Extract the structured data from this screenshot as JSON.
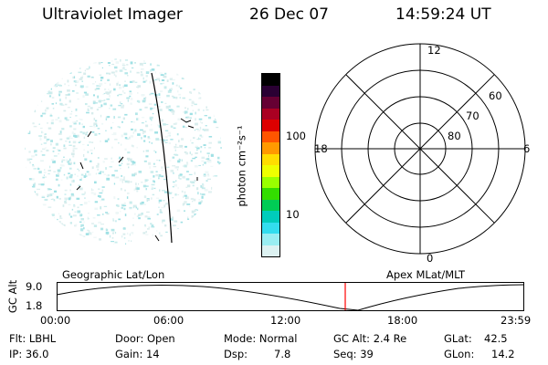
{
  "header": {
    "instrument": "Ultraviolet Imager",
    "date": "26 Dec 07",
    "time": "14:59:24 UT"
  },
  "colorbar": {
    "label": "photon cm⁻²s⁻¹",
    "ticks": [
      "100",
      "10"
    ],
    "colors": [
      "#000000",
      "#2a0033",
      "#660033",
      "#aa0022",
      "#dd0000",
      "#ff5500",
      "#ff9900",
      "#ffdd00",
      "#eeff00",
      "#99ff00",
      "#33dd00",
      "#00cc55",
      "#00ccbb",
      "#33ddee",
      "#99eef2",
      "#ddf2f2"
    ]
  },
  "polar_plot": {
    "labels": {
      "top": "12",
      "bottom": "0",
      "left": "18",
      "right": "6"
    },
    "lat_labels": [
      "60",
      "70",
      "80"
    ]
  },
  "timeline": {
    "left_title": "Geographic Lat/Lon",
    "right_title": "Apex MLat/MLT",
    "ylabel": "GC Alt",
    "ymax": "9.0",
    "ymin": "1.8",
    "xticks": [
      "00:00",
      "06:00",
      "12:00",
      "18:00",
      "23:59"
    ],
    "marker_color": "#ff0000"
  },
  "info": {
    "filter": "Flt: LBHL",
    "ip": "IP: 36.0",
    "door": "Door: Open",
    "gain": "Gain: 14",
    "mode": "Mode: Normal",
    "dsp_label": "Dsp:",
    "dsp_value": "7.8",
    "gc_alt": "GC Alt: 2.4 Re",
    "seq": "Seq: 39",
    "glat_label": "GLat:",
    "glat_value": "42.5",
    "glon_label": "GLon:",
    "glon_value": "14.2"
  }
}
